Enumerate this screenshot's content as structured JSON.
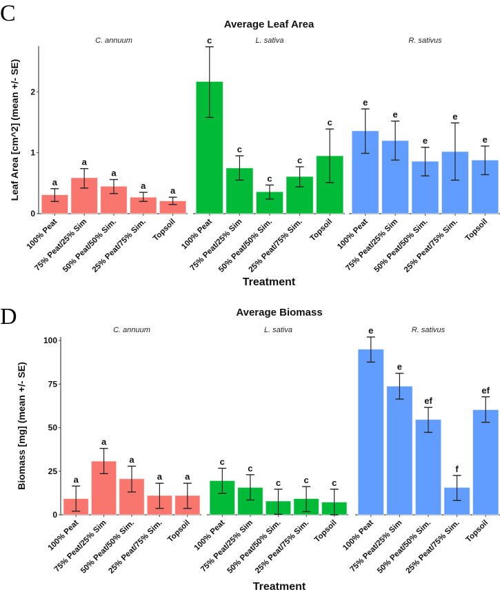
{
  "chart_data": [
    {
      "type": "bar",
      "panel_label": "C",
      "title": "Average Leaf Area",
      "xlabel": "Treatment",
      "ylabel": "Leaf Area [cm^2] (mean +/- SE)",
      "ylim": [
        0,
        2.75
      ],
      "yticks": [
        0,
        1,
        2
      ],
      "grid": false,
      "categories": [
        "100% Peat",
        "75% Peat/25% Sim",
        "50% Peat/50% Sim.",
        "25% Peat/75% Sim.",
        "Topsoil"
      ],
      "facets": [
        {
          "name": "C. annuum",
          "color": "#F8766D",
          "values": [
            0.31,
            0.59,
            0.45,
            0.27,
            0.21
          ],
          "err_low": [
            0.2,
            0.42,
            0.33,
            0.2,
            0.15
          ],
          "err_high": [
            0.41,
            0.74,
            0.56,
            0.35,
            0.27
          ],
          "letters": [
            "a",
            "a",
            "a",
            "a",
            "a"
          ]
        },
        {
          "name": "L. sativa",
          "color": "#00BA38",
          "values": [
            2.17,
            0.75,
            0.36,
            0.61,
            0.95
          ],
          "err_low": [
            1.58,
            0.55,
            0.24,
            0.44,
            0.51
          ],
          "err_high": [
            2.74,
            0.95,
            0.47,
            0.77,
            1.39
          ],
          "letters": [
            "c",
            "c",
            "c",
            "c",
            "c"
          ]
        },
        {
          "name": "R. sativus",
          "color": "#619CFF",
          "values": [
            1.36,
            1.2,
            0.86,
            1.02,
            0.88
          ],
          "err_low": [
            0.99,
            0.88,
            0.62,
            0.55,
            0.64
          ],
          "err_high": [
            1.72,
            1.52,
            1.09,
            1.49,
            1.11
          ],
          "letters": [
            "e",
            "e",
            "e",
            "e",
            "e"
          ]
        }
      ]
    },
    {
      "type": "bar",
      "panel_label": "D",
      "title": "Average Biomass",
      "xlabel": "Treatment",
      "ylabel": "Biomass [mg] (mean +/- SE)",
      "ylim": [
        0,
        102
      ],
      "yticks": [
        0,
        25,
        50,
        75,
        100
      ],
      "grid": false,
      "categories": [
        "100% Peat",
        "75% Peat/25% Sim",
        "50% Peat/50% Sim.",
        "25% Peat/75% Sim.",
        "Topsoil"
      ],
      "facets": [
        {
          "name": "C. annuum",
          "color": "#F8766D",
          "values": [
            9.3,
            30.8,
            20.7,
            11.1,
            11.1
          ],
          "err_low": [
            2.1,
            23.6,
            13.1,
            3.7,
            3.7
          ],
          "err_high": [
            16.5,
            38.1,
            27.9,
            18.1,
            18.1
          ],
          "letters": [
            "a",
            "a",
            "a",
            "a",
            "a"
          ]
        },
        {
          "name": "L. sativa",
          "color": "#00BA38",
          "values": [
            19.6,
            15.7,
            7.9,
            9.3,
            7.3
          ],
          "err_low": [
            12.3,
            8.5,
            0.3,
            1.8,
            0.0
          ],
          "err_high": [
            26.7,
            23.0,
            14.7,
            16.2,
            14.7
          ],
          "letters": [
            "c",
            "c",
            "c",
            "c",
            "c"
          ]
        },
        {
          "name": "R. sativus",
          "color": "#619CFF",
          "values": [
            95.0,
            73.8,
            54.7,
            15.7,
            60.3
          ],
          "err_low": [
            87.6,
            66.4,
            47.3,
            8.2,
            53.1
          ],
          "err_high": [
            102.0,
            81.2,
            61.6,
            22.6,
            67.7
          ],
          "letters": [
            "e",
            "e",
            "ef",
            "f",
            "ef"
          ]
        }
      ]
    }
  ]
}
